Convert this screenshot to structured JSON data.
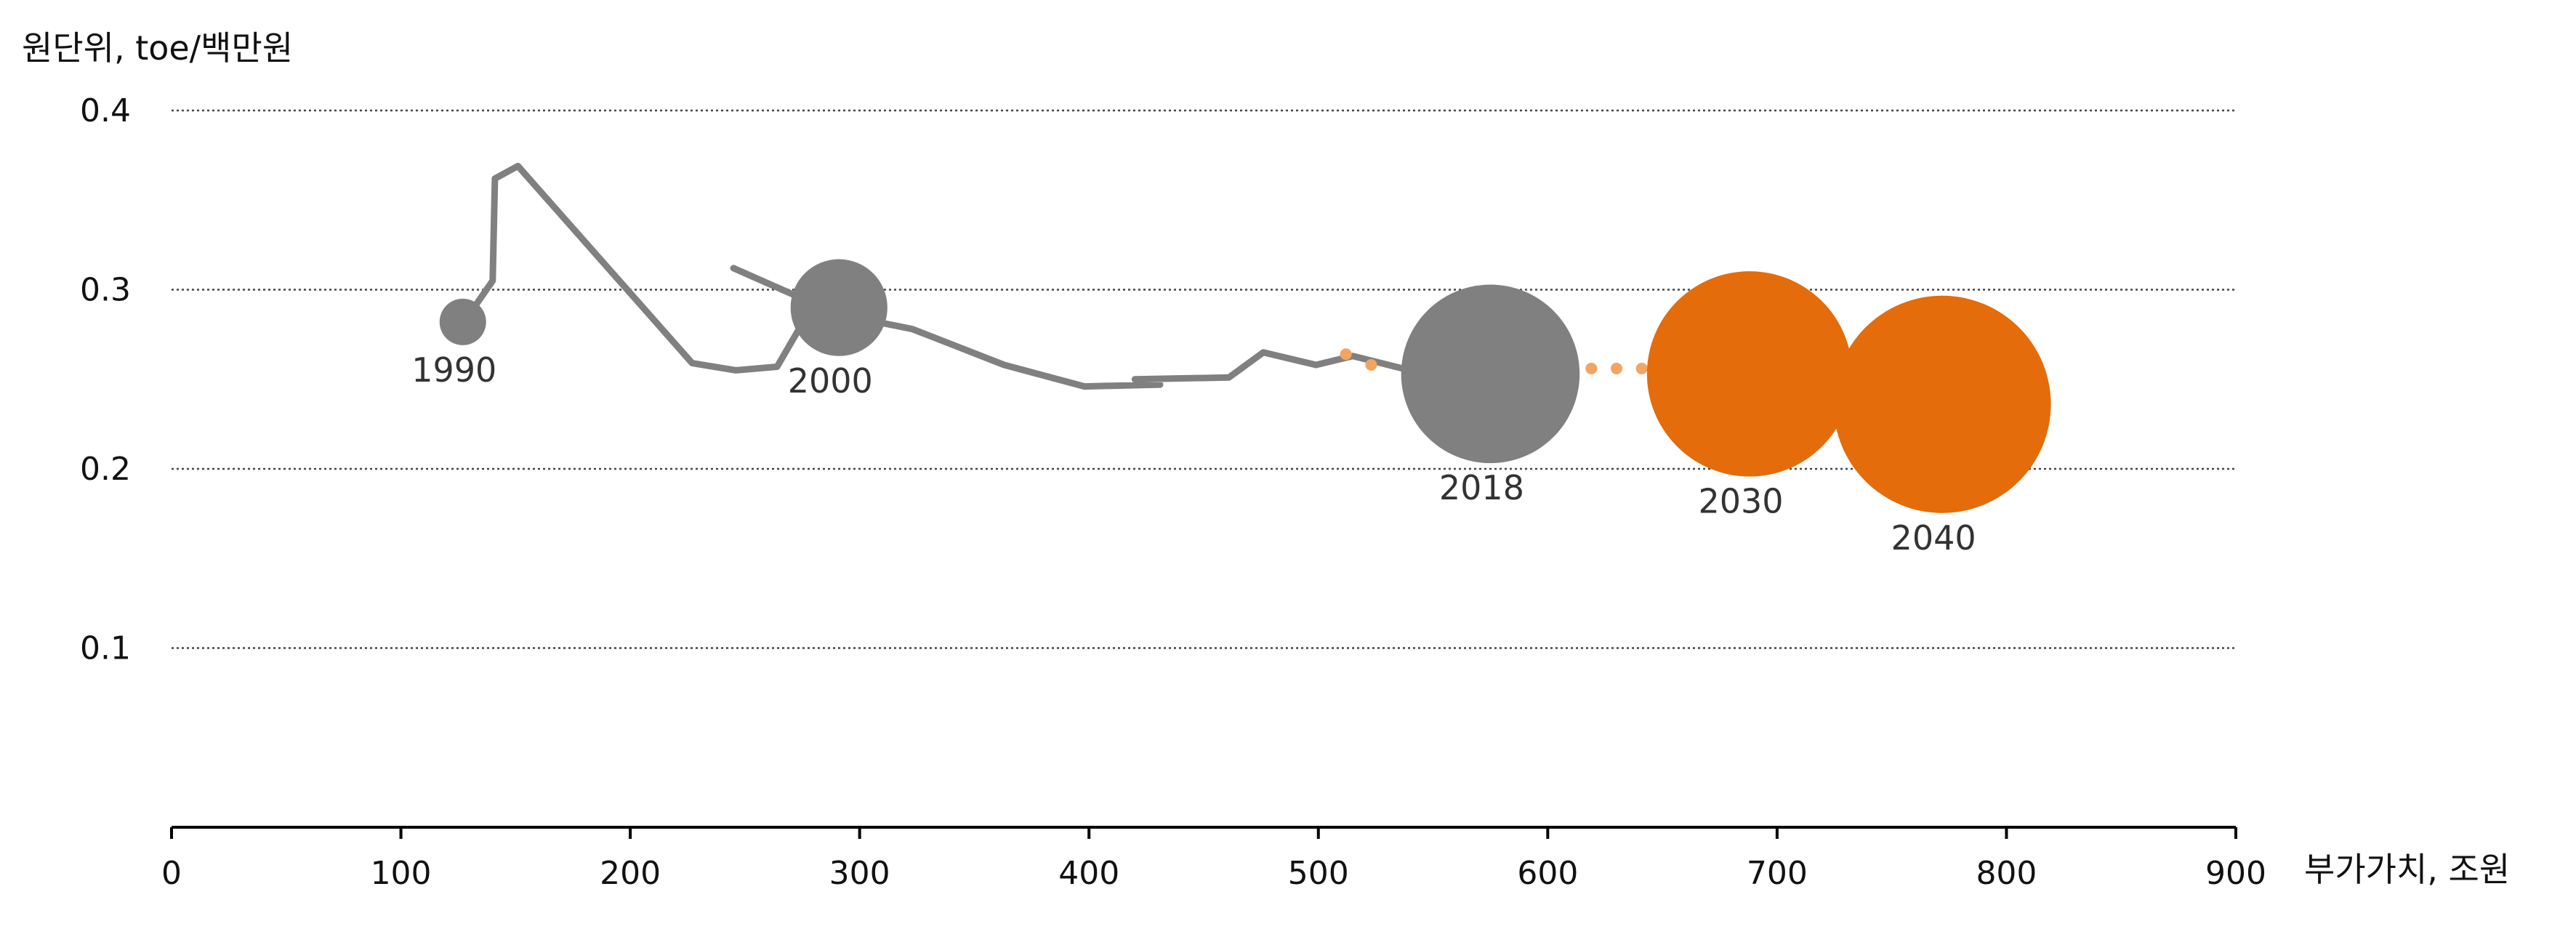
{
  "chart_data": {
    "type": "scatter",
    "ylabel": "원단위, toe/백만원",
    "xlabel": "부가가치, 조원",
    "xlim": [
      0,
      900
    ],
    "ylim": [
      0,
      0.4
    ],
    "x_ticks": [
      "0",
      "100",
      "200",
      "300",
      "400",
      "500",
      "600",
      "700",
      "800",
      "900"
    ],
    "y_ticks": [
      "0.1",
      "0.2",
      "0.3",
      "0.4"
    ],
    "grid": "horizontal-dotted",
    "colors": {
      "historical": "#808080",
      "projection": "#E46C0A",
      "projection_dots": "#F4A460"
    },
    "historical_path": [
      [
        127,
        0.281
      ],
      [
        140,
        0.305
      ],
      [
        141,
        0.362
      ],
      [
        151,
        0.369
      ],
      [
        227,
        0.259
      ],
      [
        246,
        0.255
      ],
      [
        264,
        0.257
      ],
      [
        279,
        0.29
      ],
      [
        288,
        0.292
      ],
      [
        292,
        0.286
      ],
      [
        323,
        0.278
      ],
      [
        363,
        0.258
      ],
      [
        398,
        0.246
      ],
      [
        431,
        0.247
      ],
      [
        420,
        0.25
      ],
      [
        461,
        0.251
      ],
      [
        476,
        0.265
      ],
      [
        499,
        0.258
      ],
      [
        515,
        0.263
      ],
      [
        543,
        0.254
      ],
      [
        575,
        0.253
      ]
    ],
    "historical_spur": [
      [
        245,
        0.312
      ],
      [
        291,
        0.286
      ]
    ],
    "projection_dots": [
      [
        512,
        0.264
      ],
      [
        523,
        0.258
      ],
      [
        619,
        0.256
      ],
      [
        630,
        0.256
      ],
      [
        641,
        0.256
      ]
    ],
    "bubbles": [
      {
        "label": "1990",
        "x": 127,
        "y": 0.282,
        "size": 1,
        "group": "historical"
      },
      {
        "label": "2000",
        "x": 291,
        "y": 0.29,
        "size": 5,
        "group": "historical"
      },
      {
        "label": "2018",
        "x": 575,
        "y": 0.253,
        "size": 18,
        "group": "historical"
      },
      {
        "label": "2030",
        "x": 688,
        "y": 0.253,
        "size": 24,
        "group": "projection"
      },
      {
        "label": "2040",
        "x": 772,
        "y": 0.236,
        "size": 27,
        "group": "projection"
      }
    ]
  }
}
